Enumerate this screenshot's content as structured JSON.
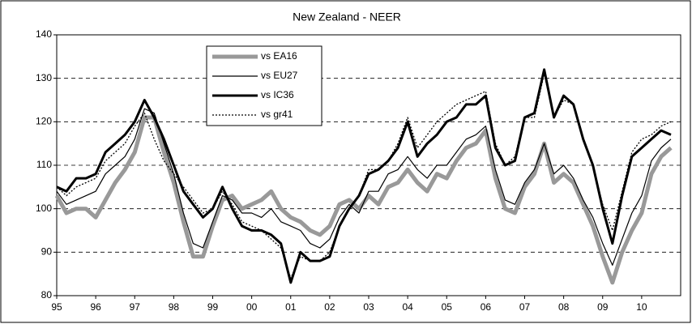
{
  "chart_data": {
    "type": "line",
    "title": "New Zealand - NEER",
    "x": [
      1995,
      1995.25,
      1995.5,
      1995.75,
      1996,
      1996.25,
      1996.5,
      1996.75,
      1997,
      1997.25,
      1997.5,
      1997.75,
      1998,
      1998.25,
      1998.5,
      1998.75,
      1999,
      1999.25,
      1999.5,
      1999.75,
      2000,
      2000.25,
      2000.5,
      2000.75,
      2001,
      2001.25,
      2001.5,
      2001.75,
      2002,
      2002.25,
      2002.5,
      2002.75,
      2003,
      2003.25,
      2003.5,
      2003.75,
      2004,
      2004.25,
      2004.5,
      2004.75,
      2005,
      2005.25,
      2005.5,
      2005.75,
      2006,
      2006.25,
      2006.5,
      2006.75,
      2007,
      2007.25,
      2007.5,
      2007.75,
      2008,
      2008.25,
      2008.5,
      2008.75,
      2009,
      2009.25,
      2009.5,
      2009.75,
      2010,
      2010.25,
      2010.5,
      2010.75
    ],
    "series": [
      {
        "name": "vs EA16",
        "color": "#999999",
        "width": 5,
        "dash": "none",
        "values": [
          103,
          99,
          100,
          100,
          98,
          102,
          106,
          109,
          113,
          121,
          121,
          113,
          106,
          97,
          89,
          89,
          96,
          102,
          103,
          100,
          101,
          102,
          104,
          100,
          98,
          97,
          95,
          94,
          96,
          101,
          102,
          100,
          103,
          101,
          105,
          106,
          109,
          106,
          104,
          108,
          107,
          111,
          114,
          115,
          118,
          107,
          100,
          99,
          105,
          108,
          115,
          106,
          108,
          106,
          101,
          96,
          89,
          83,
          90,
          95,
          99,
          108,
          112,
          114
        ]
      },
      {
        "name": "vs EU27",
        "color": "#000000",
        "width": 1.2,
        "dash": "none",
        "values": [
          104,
          101,
          102,
          103,
          104,
          108,
          110,
          112,
          116,
          123,
          122,
          115,
          108,
          99,
          92,
          91,
          97,
          103,
          102,
          99,
          99,
          98,
          100,
          97,
          96,
          95,
          92,
          91,
          93,
          98,
          101,
          99,
          104,
          104,
          108,
          109,
          112,
          109,
          107,
          110,
          110,
          113,
          116,
          117,
          119,
          109,
          102,
          101,
          106,
          109,
          115,
          108,
          110,
          107,
          102,
          98,
          92,
          87,
          93,
          99,
          103,
          111,
          114,
          116
        ]
      },
      {
        "name": "vs IC36",
        "color": "#000000",
        "width": 3,
        "dash": "none",
        "values": [
          105,
          104,
          107,
          107,
          108,
          113,
          115,
          117,
          120,
          125,
          121,
          116,
          110,
          104,
          101,
          98,
          100,
          105,
          100,
          96,
          95,
          95,
          94,
          92,
          83,
          90,
          88,
          88,
          89,
          96,
          100,
          103,
          108,
          109,
          111,
          114,
          120,
          112,
          115,
          117,
          120,
          121,
          124,
          124,
          126,
          114,
          110,
          111,
          121,
          122,
          132,
          121,
          126,
          124,
          116,
          110,
          100,
          92,
          103,
          112,
          114,
          116,
          118,
          117
        ]
      },
      {
        "name": "vs gr41",
        "color": "#000000",
        "width": 1.3,
        "dash": "2 2",
        "values": [
          105,
          103,
          105,
          106,
          107,
          111,
          113,
          115,
          119,
          122,
          116,
          111,
          108,
          105,
          102,
          99,
          100,
          104,
          101,
          97,
          96,
          95,
          93,
          91,
          84,
          89,
          88,
          88,
          90,
          96,
          100,
          103,
          109,
          109,
          111,
          115,
          121,
          114,
          117,
          120,
          122,
          124,
          125,
          126,
          127,
          115,
          110,
          112,
          121,
          121,
          131,
          121,
          125,
          124,
          116,
          110,
          101,
          95,
          104,
          113,
          116,
          117,
          119,
          120
        ]
      }
    ],
    "xlim": [
      1995,
      2011
    ],
    "xticks": [
      {
        "value": 1995,
        "label": "95"
      },
      {
        "value": 1996,
        "label": "96"
      },
      {
        "value": 1997,
        "label": "97"
      },
      {
        "value": 1998,
        "label": "98"
      },
      {
        "value": 1999,
        "label": "99"
      },
      {
        "value": 2000,
        "label": "00"
      },
      {
        "value": 2001,
        "label": "01"
      },
      {
        "value": 2002,
        "label": "02"
      },
      {
        "value": 2003,
        "label": "03"
      },
      {
        "value": 2004,
        "label": "04"
      },
      {
        "value": 2005,
        "label": "05"
      },
      {
        "value": 2006,
        "label": "06"
      },
      {
        "value": 2007,
        "label": "07"
      },
      {
        "value": 2008,
        "label": "08"
      },
      {
        "value": 2009,
        "label": "09"
      },
      {
        "value": 2010,
        "label": "10"
      }
    ],
    "ylim": [
      80,
      140
    ],
    "yticks": [
      80,
      90,
      100,
      110,
      120,
      130,
      140
    ],
    "grid": true
  }
}
